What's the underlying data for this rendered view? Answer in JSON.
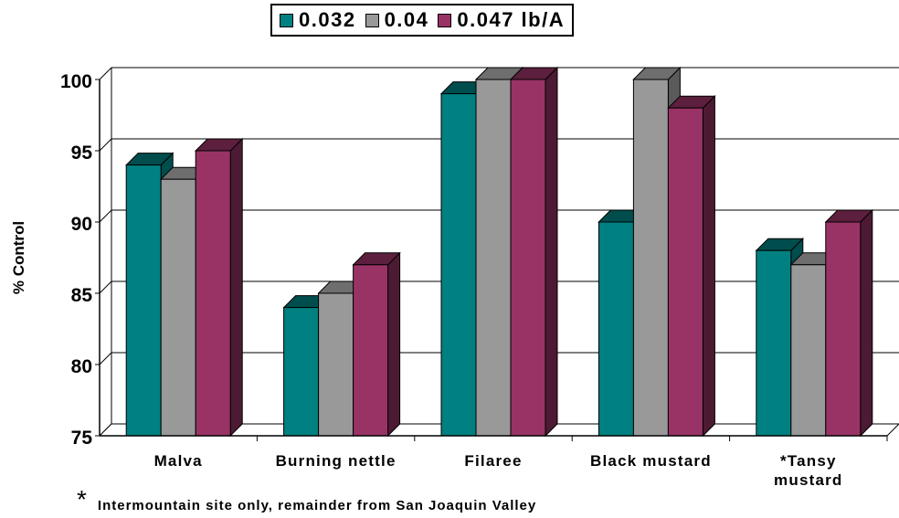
{
  "chart_data": {
    "type": "bar",
    "categories": [
      [
        "Malva"
      ],
      [
        "Burning nettle"
      ],
      [
        "Filaree"
      ],
      [
        "Black mustard"
      ],
      [
        "*Tansy",
        "mustard"
      ]
    ],
    "series": [
      {
        "name": "0.032",
        "values": [
          94,
          84,
          99,
          90,
          88
        ],
        "color": "#008080",
        "side": "#004d4d",
        "top": "#004d4d"
      },
      {
        "name": "0.04",
        "values": [
          93,
          85,
          100,
          100,
          87
        ],
        "color": "#999999",
        "side": "#5a5a5a",
        "top": "#6e6e6e"
      },
      {
        "name": "0.047 lb/A",
        "values": [
          95,
          87,
          100,
          98,
          90
        ],
        "color": "#993366",
        "side": "#4d1a33",
        "top": "#5c1f3d"
      }
    ],
    "ylabel": "% Control",
    "ylim": [
      75,
      100
    ],
    "yticks": [
      75,
      80,
      85,
      90,
      95,
      100
    ],
    "grid": true,
    "legend_position": "top-center"
  },
  "footnote": {
    "mark": "*",
    "text": "Intermountain site only, remainder from San Joaquin Valley"
  }
}
